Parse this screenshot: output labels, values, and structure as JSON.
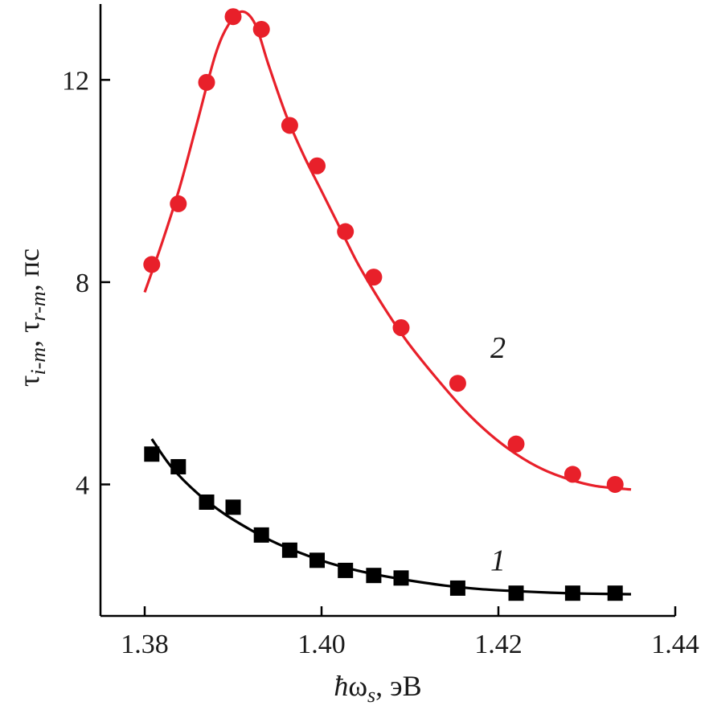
{
  "chart_data": {
    "type": "scatter",
    "title": "",
    "xlabel": "ħω_s, эВ",
    "ylabel": "τ_i-m, τ_r-m, пс",
    "xlim": [
      1.375,
      1.44
    ],
    "ylim": [
      1.4,
      13.5
    ],
    "x_ticks": [
      1.38,
      1.4,
      1.42,
      1.44
    ],
    "x_tick_labels": [
      "1.38",
      "1.40",
      "1.42",
      "1.44"
    ],
    "y_ticks": [
      4,
      8,
      12
    ],
    "y_tick_labels": [
      "4",
      "8",
      "12"
    ],
    "grid": false,
    "legend": "none",
    "series": [
      {
        "label": "1",
        "color": "#000000",
        "marker": "square",
        "points": {
          "x": [
            1.3808,
            1.3838,
            1.387,
            1.39,
            1.3932,
            1.3964,
            1.3995,
            1.4027,
            1.4059,
            1.409,
            1.4154,
            1.422,
            1.4284,
            1.4332
          ],
          "y": [
            4.6,
            4.35,
            3.65,
            3.55,
            3.0,
            2.7,
            2.5,
            2.3,
            2.2,
            2.15,
            1.95,
            1.85,
            1.85,
            1.85
          ]
        },
        "fit": {
          "x": [
            1.3808,
            1.383,
            1.386,
            1.389,
            1.392,
            1.395,
            1.398,
            1.401,
            1.404,
            1.407,
            1.41,
            1.414,
            1.418,
            1.422,
            1.426,
            1.43,
            1.435
          ],
          "y": [
            4.9,
            4.35,
            3.82,
            3.42,
            3.1,
            2.83,
            2.62,
            2.44,
            2.3,
            2.19,
            2.1,
            2.0,
            1.93,
            1.89,
            1.86,
            1.84,
            1.83
          ]
        }
      },
      {
        "label": "2",
        "color": "#e8202a",
        "marker": "circle",
        "points": {
          "x": [
            1.3808,
            1.3838,
            1.387,
            1.39,
            1.3932,
            1.3964,
            1.3995,
            1.4027,
            1.4059,
            1.409,
            1.4154,
            1.422,
            1.4284,
            1.4332
          ],
          "y": [
            8.35,
            9.55,
            11.95,
            13.25,
            13.0,
            11.1,
            10.3,
            9.0,
            8.1,
            7.1,
            6.0,
            4.8,
            4.2,
            4.0
          ],
          "fit": {
            "x": [
              1.38,
              1.382,
              1.384,
              1.386,
              1.388,
              1.3895,
              1.391,
              1.3925,
              1.394,
              1.396,
              1.398,
              1.4,
              1.402,
              1.404,
              1.406,
              1.408,
              1.41,
              1.413,
              1.416,
              1.419,
              1.422,
              1.425,
              1.428,
              1.431,
              1.435
            ],
            "y": [
              7.8,
              8.8,
              9.9,
              11.2,
              12.5,
              13.1,
              13.35,
              13.1,
              12.3,
              11.3,
              10.5,
              9.8,
              9.1,
              8.4,
              7.8,
              7.25,
              6.75,
              6.1,
              5.5,
              5.0,
              4.6,
              4.3,
              4.1,
              3.97,
              3.9
            ]
          }
        }
      }
    ]
  }
}
